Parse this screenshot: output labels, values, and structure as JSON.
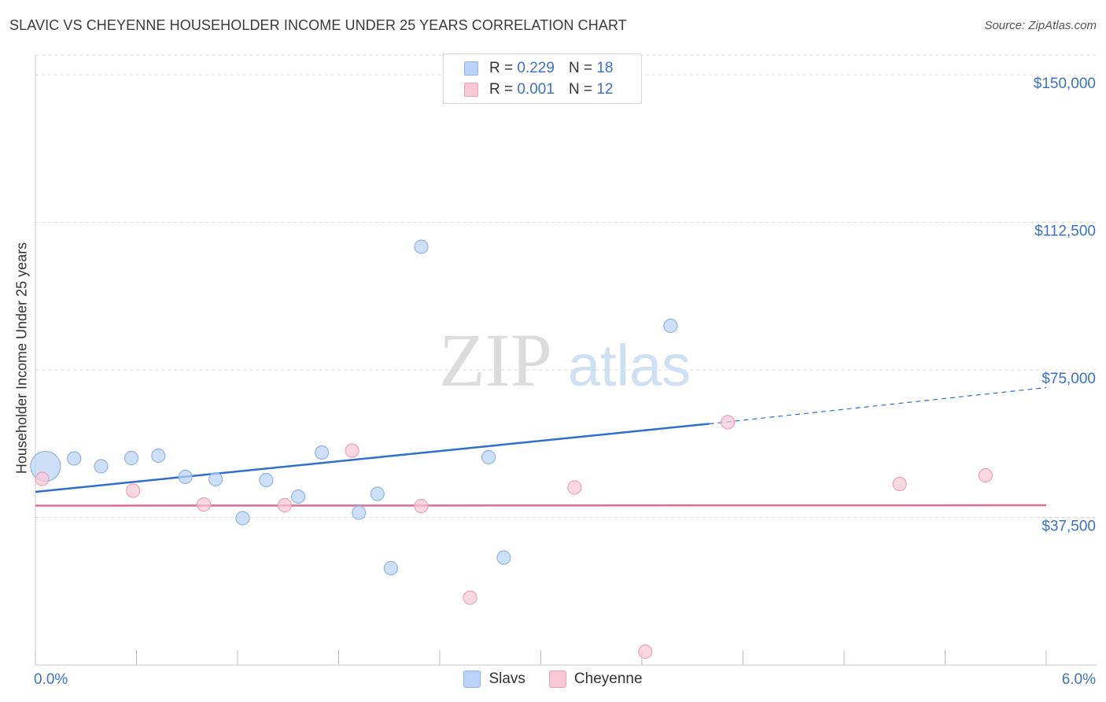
{
  "title": "SLAVIC VS CHEYENNE HOUSEHOLDER INCOME UNDER 25 YEARS CORRELATION CHART",
  "source": "Source: ZipAtlas.com",
  "watermark": {
    "zip": "ZIP",
    "atlas": "atlas"
  },
  "colors": {
    "slavs_fill": "#b8d3f5",
    "slavs_stroke": "#8fb3e3",
    "slavs_line": "#2f6fd0",
    "cheyenne_fill": "#f8c8d6",
    "cheyenne_stroke": "#eda0b6",
    "cheyenne_line": "#e06b92",
    "value_text": "#3b72c9"
  },
  "legend": {
    "rows": [
      {
        "r_label": "R =",
        "r_value": "0.229",
        "n_label": "N =",
        "n_value": "18"
      },
      {
        "r_label": "R =",
        "r_value": "0.001",
        "n_label": "N =",
        "n_value": "12"
      }
    ]
  },
  "bottom_legend": {
    "slavs": "Slavs",
    "cheyenne": "Cheyenne"
  },
  "chart_data": {
    "type": "scatter",
    "title": "SLAVIC VS CHEYENNE HOUSEHOLDER INCOME UNDER 25 YEARS CORRELATION CHART",
    "xlabel": "",
    "ylabel": "Householder Income Under 25 years",
    "xlim": [
      0,
      6
    ],
    "ylim": [
      0,
      155000
    ],
    "x_tick_labels": [
      "0.0%",
      "6.0%"
    ],
    "y_ticks": [
      37500,
      75000,
      112500,
      150000
    ],
    "y_tick_labels": [
      "$37,500",
      "$75,000",
      "$112,500",
      "$150,000"
    ],
    "grid": true,
    "series": [
      {
        "name": "Slavs",
        "points": [
          {
            "x": 0.06,
            "y": 50500,
            "size": "large"
          },
          {
            "x": 0.23,
            "y": 52500
          },
          {
            "x": 0.39,
            "y": 50500
          },
          {
            "x": 0.57,
            "y": 52600
          },
          {
            "x": 0.73,
            "y": 53200
          },
          {
            "x": 0.89,
            "y": 47800
          },
          {
            "x": 1.07,
            "y": 47200
          },
          {
            "x": 1.23,
            "y": 37300
          },
          {
            "x": 1.37,
            "y": 47000
          },
          {
            "x": 1.56,
            "y": 42800
          },
          {
            "x": 1.7,
            "y": 54000
          },
          {
            "x": 1.92,
            "y": 38700
          },
          {
            "x": 2.03,
            "y": 43500
          },
          {
            "x": 2.11,
            "y": 24600
          },
          {
            "x": 2.29,
            "y": 106300
          },
          {
            "x": 2.69,
            "y": 52800
          },
          {
            "x": 2.78,
            "y": 27300
          },
          {
            "x": 3.77,
            "y": 86200
          }
        ],
        "trend": {
          "x0": 0,
          "y0": 44000,
          "x1": 4.0,
          "y1": 61300,
          "dashed_to_x": 6.0,
          "dashed_to_y": 70500
        }
      },
      {
        "name": "Cheyenne",
        "points": [
          {
            "x": 0.04,
            "y": 47300
          },
          {
            "x": 0.58,
            "y": 44300
          },
          {
            "x": 1.0,
            "y": 40800
          },
          {
            "x": 1.48,
            "y": 40600
          },
          {
            "x": 1.88,
            "y": 54500
          },
          {
            "x": 2.29,
            "y": 40400
          },
          {
            "x": 2.58,
            "y": 17100
          },
          {
            "x": 3.2,
            "y": 45100
          },
          {
            "x": 3.62,
            "y": 3400
          },
          {
            "x": 4.11,
            "y": 61700
          },
          {
            "x": 5.13,
            "y": 46000
          },
          {
            "x": 5.64,
            "y": 48200
          }
        ],
        "trend": {
          "x0": 0,
          "y0": 40500,
          "x1": 6.0,
          "y1": 40600
        }
      }
    ]
  }
}
